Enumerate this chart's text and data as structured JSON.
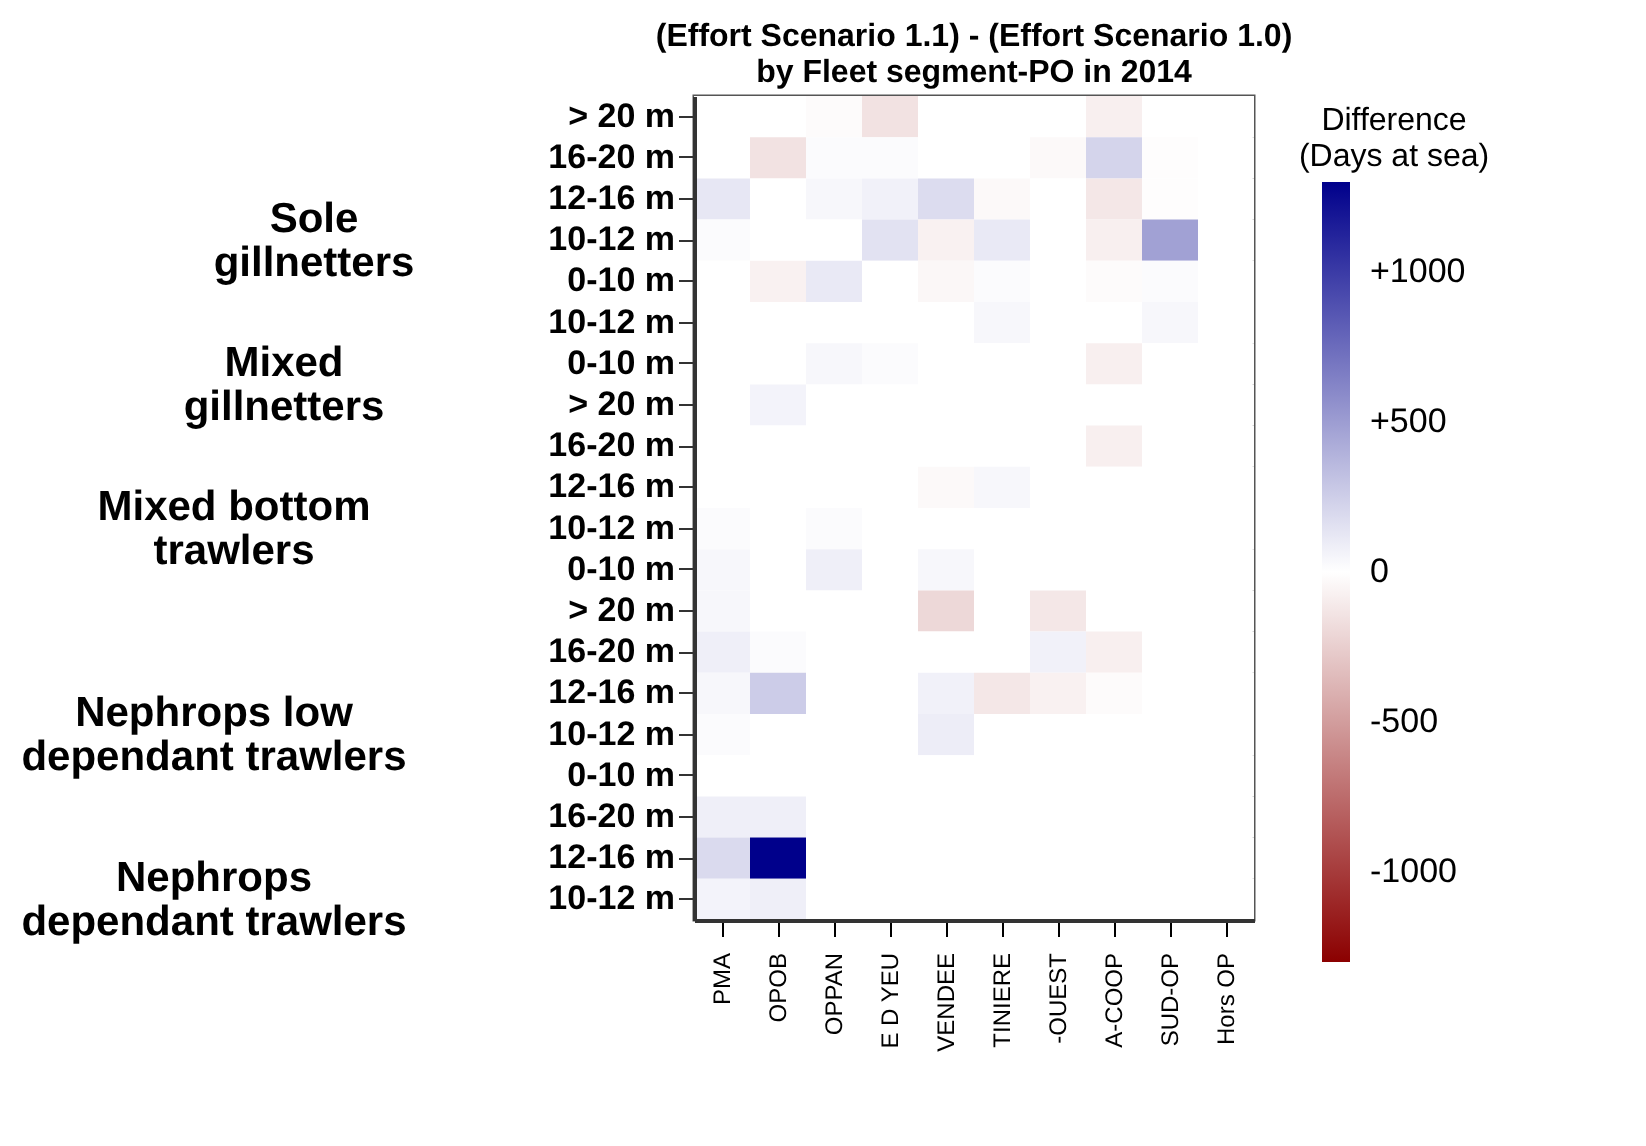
{
  "chart_data": {
    "type": "heatmap",
    "title": "(Effort Scenario 1.1) - (Effort Scenario 1.0)\nby Fleet segment-PO in 2014",
    "clabel": "Difference\n(Days at sea)",
    "categories": [
      "PMA",
      "OPOB",
      "OPPAN",
      "E D YEU",
      "VENDEE",
      "TINIERE",
      "-OUEST",
      "A-COOP",
      "SUD-OP",
      "Hors OP"
    ],
    "y_categories": [
      "> 20 m",
      "16-20 m",
      "12-16 m",
      "10-12 m",
      "0-10 m",
      "10-12 m",
      "0-10 m",
      "> 20 m",
      "16-20 m",
      "12-16 m",
      "10-12 m",
      "0-10 m",
      "> 20 m",
      "16-20 m",
      "12-16 m",
      "10-12 m",
      "0-10 m",
      "16-20 m",
      "12-16 m",
      "10-12 m"
    ],
    "cells": [
      [
        0,
        0,
        -20,
        -150,
        0,
        0,
        0,
        -80,
        0,
        0
      ],
      [
        0,
        -150,
        20,
        20,
        0,
        0,
        -30,
        220,
        -10,
        0
      ],
      [
        120,
        0,
        40,
        70,
        180,
        -30,
        0,
        -120,
        -10,
        0
      ],
      [
        20,
        0,
        0,
        150,
        -70,
        110,
        0,
        -80,
        480,
        0
      ],
      [
        0,
        -70,
        110,
        0,
        -40,
        20,
        0,
        -20,
        20,
        0
      ],
      [
        0,
        0,
        0,
        0,
        0,
        40,
        0,
        0,
        40,
        0
      ],
      [
        0,
        0,
        40,
        20,
        0,
        0,
        0,
        -80,
        0,
        0
      ],
      [
        0,
        60,
        0,
        0,
        0,
        0,
        0,
        0,
        0,
        0
      ],
      [
        0,
        0,
        0,
        0,
        0,
        0,
        0,
        -80,
        0,
        0
      ],
      [
        0,
        0,
        0,
        0,
        -30,
        40,
        0,
        0,
        0,
        0
      ],
      [
        20,
        0,
        20,
        0,
        0,
        0,
        0,
        0,
        0,
        0
      ],
      [
        40,
        0,
        80,
        0,
        40,
        0,
        0,
        0,
        0,
        0
      ],
      [
        40,
        0,
        0,
        0,
        -200,
        0,
        -120,
        0,
        0,
        0
      ],
      [
        80,
        20,
        0,
        0,
        0,
        0,
        70,
        -80,
        0,
        0
      ],
      [
        40,
        260,
        0,
        0,
        70,
        -120,
        -70,
        -20,
        0,
        0
      ],
      [
        20,
        0,
        0,
        0,
        90,
        0,
        0,
        0,
        0,
        0
      ],
      [
        0,
        0,
        0,
        0,
        0,
        0,
        0,
        0,
        0,
        0
      ],
      [
        80,
        80,
        0,
        0,
        0,
        0,
        0,
        0,
        0,
        0
      ],
      [
        190,
        1300,
        0,
        0,
        0,
        0,
        0,
        0,
        0,
        0
      ],
      [
        60,
        80,
        0,
        0,
        0,
        0,
        0,
        0,
        0,
        0
      ]
    ],
    "clim": [
      -1300,
      1300
    ],
    "cticks": [
      {
        "value": 1000,
        "label": "+1000"
      },
      {
        "value": 500,
        "label": "+500"
      },
      0,
      -500,
      -1000
    ],
    "annotations": [
      "Sole\ngillnetters",
      "Mixed\ngillnetters",
      "Mixed bottom\ntrawlers",
      "Nephrops low\ndependant trawlers",
      "Nephrops\ndependant trawlers"
    ]
  }
}
